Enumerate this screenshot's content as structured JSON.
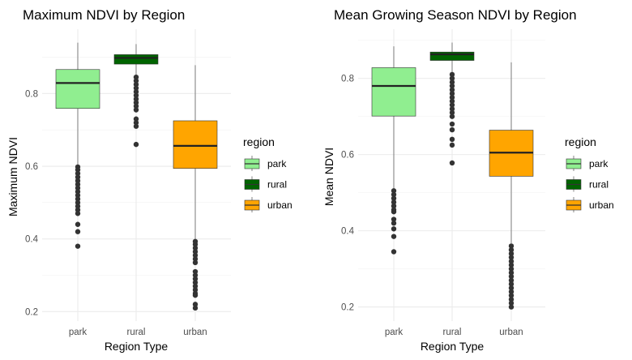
{
  "chart_data": [
    {
      "type": "boxplot",
      "title": "Maximum NDVI by Region",
      "xlabel": "Region Type",
      "ylabel": "Maximum NDVI",
      "categories": [
        "park",
        "rural",
        "urban"
      ],
      "yticks": [
        0.2,
        0.4,
        0.6,
        0.8
      ],
      "ytick_labels": [
        "0.2",
        "0.4",
        "0.6",
        "0.8"
      ],
      "ylim": [
        0.174,
        0.977
      ],
      "grid": true,
      "legend": {
        "title": "region",
        "position": "right",
        "labels": [
          "park",
          "rural",
          "urban"
        ]
      },
      "boxes": [
        {
          "category": "park",
          "whisker_low": 0.602,
          "q1": 0.759,
          "median": 0.829,
          "q3": 0.866,
          "whisker_high": 0.94,
          "outliers": [
            0.598,
            0.59,
            0.58,
            0.57,
            0.56,
            0.55,
            0.54,
            0.53,
            0.52,
            0.51,
            0.5,
            0.49,
            0.48,
            0.47,
            0.44,
            0.42,
            0.38
          ]
        },
        {
          "category": "rural",
          "whisker_low": 0.848,
          "q1": 0.881,
          "median": 0.898,
          "q3": 0.907,
          "whisker_high": 0.936,
          "outliers": [
            0.845,
            0.835,
            0.825,
            0.815,
            0.805,
            0.795,
            0.785,
            0.775,
            0.765,
            0.755,
            0.73,
            0.72,
            0.71,
            0.66
          ]
        },
        {
          "category": "urban",
          "whisker_low": 0.397,
          "q1": 0.594,
          "median": 0.656,
          "q3": 0.725,
          "whisker_high": 0.878,
          "outliers": [
            0.393,
            0.385,
            0.375,
            0.365,
            0.355,
            0.345,
            0.335,
            0.31,
            0.3,
            0.29,
            0.28,
            0.27,
            0.26,
            0.25,
            0.245,
            0.22,
            0.21
          ]
        }
      ]
    },
    {
      "type": "boxplot",
      "title": "Mean Growing Season NDVI by Region",
      "xlabel": "Region Type",
      "ylabel": "Mean NDVI",
      "categories": [
        "park",
        "rural",
        "urban"
      ],
      "yticks": [
        0.2,
        0.4,
        0.6,
        0.8
      ],
      "ytick_labels": [
        "0.2",
        "0.4",
        "0.6",
        "0.8"
      ],
      "ylim": [
        0.163,
        0.929
      ],
      "grid": true,
      "legend": {
        "title": "region",
        "position": "right",
        "labels": [
          "park",
          "rural",
          "urban"
        ]
      },
      "boxes": [
        {
          "category": "park",
          "whisker_low": 0.51,
          "q1": 0.701,
          "median": 0.78,
          "q3": 0.828,
          "whisker_high": 0.884,
          "outliers": [
            0.505,
            0.495,
            0.485,
            0.475,
            0.465,
            0.455,
            0.45,
            0.43,
            0.42,
            0.405,
            0.385,
            0.345
          ]
        },
        {
          "category": "rural",
          "whisker_low": 0.816,
          "q1": 0.847,
          "median": 0.863,
          "q3": 0.869,
          "whisker_high": 0.894,
          "outliers": [
            0.81,
            0.8,
            0.79,
            0.78,
            0.77,
            0.76,
            0.75,
            0.74,
            0.73,
            0.72,
            0.71,
            0.7,
            0.68,
            0.665,
            0.64,
            0.625,
            0.578
          ]
        },
        {
          "category": "urban",
          "whisker_low": 0.367,
          "q1": 0.543,
          "median": 0.605,
          "q3": 0.664,
          "whisker_high": 0.842,
          "outliers": [
            0.36,
            0.35,
            0.34,
            0.33,
            0.32,
            0.31,
            0.3,
            0.29,
            0.28,
            0.27,
            0.26,
            0.25,
            0.24,
            0.23,
            0.22,
            0.21,
            0.2
          ]
        }
      ]
    }
  ],
  "colors": {
    "park": "#90EE90",
    "rural": "#006400",
    "urban": "#FFA500"
  }
}
